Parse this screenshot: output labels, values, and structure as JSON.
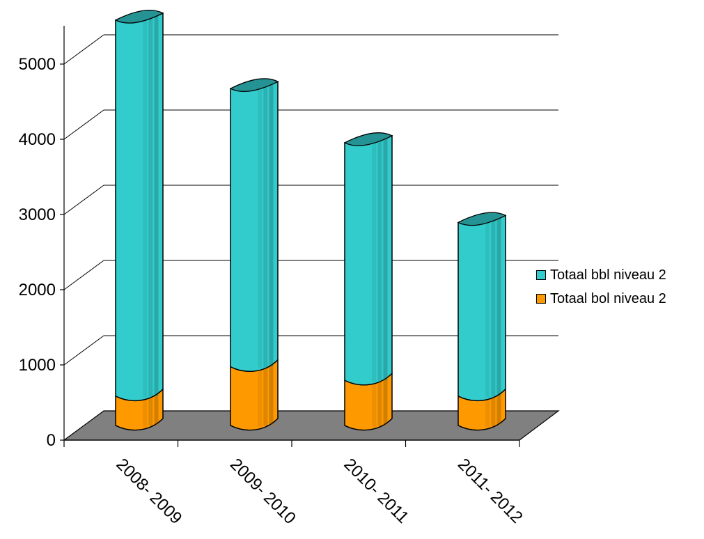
{
  "chart_data": {
    "type": "bar",
    "categories": [
      "2008- 2009",
      "2009- 2010",
      "2010- 2011",
      "2011- 2012"
    ],
    "series": [
      {
        "name": "Totaal bol niveau 2",
        "values": [
          390,
          780,
          600,
          390
        ],
        "color": "#FF9900"
      },
      {
        "name": "Totaal bbl niveau 2",
        "values": [
          5000,
          3700,
          3160,
          2310
        ],
        "color": "#33CCCC"
      }
    ],
    "stacked": true,
    "ylim": [
      0,
      5000
    ],
    "yticks": [
      "0",
      "1000",
      "2000",
      "3000",
      "4000",
      "5000"
    ],
    "grid": true,
    "legend_position": "right",
    "style": "3d-cylinder"
  },
  "legend": {
    "items": [
      {
        "label": "Totaal bbl niveau 2",
        "color": "#33CCCC"
      },
      {
        "label": "Totaal bol niveau 2",
        "color": "#FF9900"
      }
    ]
  }
}
